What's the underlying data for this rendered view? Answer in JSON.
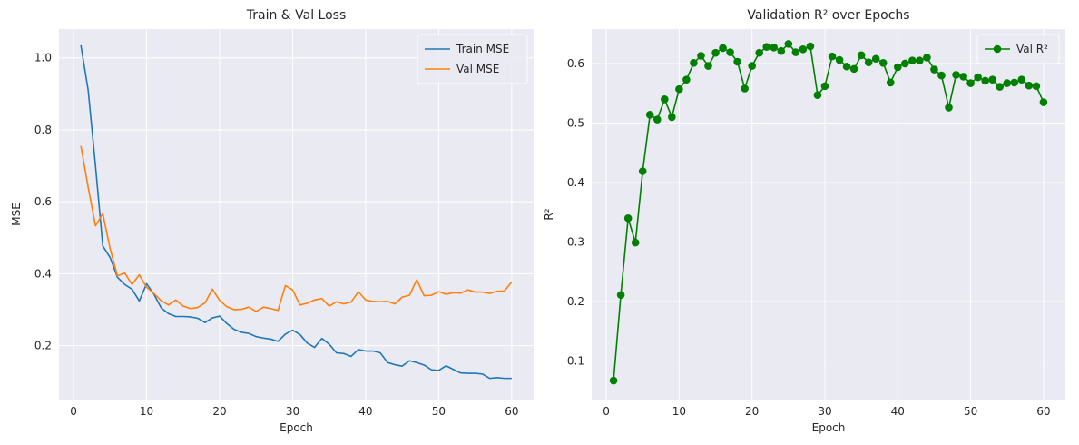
{
  "chart_data": [
    {
      "type": "line",
      "title": "Train & Val Loss",
      "xlabel": "Epoch",
      "ylabel": "MSE",
      "xlim": [
        -2,
        63
      ],
      "ylim": [
        0.05,
        1.08
      ],
      "xticks": [
        0,
        10,
        20,
        30,
        40,
        50,
        60
      ],
      "yticks": [
        0.2,
        0.4,
        0.6,
        0.8,
        1.0
      ],
      "ytick_labels": [
        "0.2",
        "0.4",
        "0.6",
        "0.8",
        "1.0"
      ],
      "grid": true,
      "legend": "top-right",
      "series": [
        {
          "name": "Train MSE",
          "color": "#1f77b4",
          "markers": false,
          "x": [
            1,
            2,
            3,
            4,
            5,
            6,
            7,
            8,
            9,
            10,
            11,
            12,
            13,
            14,
            15,
            16,
            17,
            18,
            19,
            20,
            21,
            22,
            23,
            24,
            25,
            26,
            27,
            28,
            29,
            30,
            31,
            32,
            33,
            34,
            35,
            36,
            37,
            38,
            39,
            40,
            41,
            42,
            43,
            44,
            45,
            46,
            47,
            48,
            49,
            50,
            51,
            52,
            53,
            54,
            55,
            56,
            57,
            58,
            59,
            60
          ],
          "y": [
            1.035,
            0.91,
            0.7,
            0.477,
            0.445,
            0.39,
            0.37,
            0.357,
            0.324,
            0.372,
            0.343,
            0.305,
            0.289,
            0.281,
            0.281,
            0.28,
            0.276,
            0.264,
            0.277,
            0.282,
            0.261,
            0.245,
            0.237,
            0.234,
            0.225,
            0.221,
            0.218,
            0.212,
            0.232,
            0.243,
            0.231,
            0.207,
            0.195,
            0.22,
            0.204,
            0.18,
            0.178,
            0.17,
            0.189,
            0.185,
            0.185,
            0.18,
            0.153,
            0.147,
            0.143,
            0.158,
            0.153,
            0.146,
            0.133,
            0.131,
            0.144,
            0.134,
            0.124,
            0.123,
            0.123,
            0.121,
            0.109,
            0.111,
            0.109,
            0.109
          ]
        },
        {
          "name": "Val MSE",
          "color": "#ff7f0e",
          "markers": false,
          "x": [
            1,
            2,
            3,
            4,
            5,
            6,
            7,
            8,
            9,
            10,
            11,
            12,
            13,
            14,
            15,
            16,
            17,
            18,
            19,
            20,
            21,
            22,
            23,
            24,
            25,
            26,
            27,
            28,
            29,
            30,
            31,
            32,
            33,
            34,
            35,
            36,
            37,
            38,
            39,
            40,
            41,
            42,
            43,
            44,
            45,
            46,
            47,
            48,
            49,
            50,
            51,
            52,
            53,
            54,
            55,
            56,
            57,
            58,
            59,
            60
          ],
          "y": [
            0.755,
            0.64,
            0.533,
            0.567,
            0.47,
            0.394,
            0.402,
            0.37,
            0.397,
            0.362,
            0.345,
            0.325,
            0.313,
            0.327,
            0.31,
            0.303,
            0.306,
            0.319,
            0.357,
            0.326,
            0.308,
            0.3,
            0.301,
            0.307,
            0.295,
            0.307,
            0.303,
            0.298,
            0.367,
            0.355,
            0.313,
            0.318,
            0.327,
            0.331,
            0.31,
            0.322,
            0.316,
            0.321,
            0.35,
            0.327,
            0.323,
            0.322,
            0.323,
            0.316,
            0.335,
            0.34,
            0.383,
            0.339,
            0.34,
            0.35,
            0.343,
            0.347,
            0.346,
            0.355,
            0.349,
            0.349,
            0.345,
            0.351,
            0.352,
            0.377
          ]
        }
      ]
    },
    {
      "type": "line",
      "title": "Validation R² over Epochs",
      "xlabel": "Epoch",
      "ylabel": "R²",
      "xlim": [
        -2,
        63
      ],
      "ylim": [
        0.035,
        0.658
      ],
      "xticks": [
        0,
        10,
        20,
        30,
        40,
        50,
        60
      ],
      "yticks": [
        0.1,
        0.2,
        0.3,
        0.4,
        0.5,
        0.6
      ],
      "ytick_labels": [
        "0.1",
        "0.2",
        "0.3",
        "0.4",
        "0.5",
        "0.6"
      ],
      "grid": true,
      "legend": "top-right",
      "series": [
        {
          "name": "Val R²",
          "color": "#008000",
          "markers": true,
          "x": [
            1,
            2,
            3,
            4,
            5,
            6,
            7,
            8,
            9,
            10,
            11,
            12,
            13,
            14,
            15,
            16,
            17,
            18,
            19,
            20,
            21,
            22,
            23,
            24,
            25,
            26,
            27,
            28,
            29,
            30,
            31,
            32,
            33,
            34,
            35,
            36,
            37,
            38,
            39,
            40,
            41,
            42,
            43,
            44,
            45,
            46,
            47,
            48,
            49,
            50,
            51,
            52,
            53,
            54,
            55,
            56,
            57,
            58,
            59,
            60
          ],
          "y": [
            0.067,
            0.211,
            0.34,
            0.299,
            0.419,
            0.514,
            0.506,
            0.54,
            0.51,
            0.557,
            0.573,
            0.601,
            0.613,
            0.596,
            0.618,
            0.626,
            0.619,
            0.603,
            0.558,
            0.596,
            0.618,
            0.628,
            0.627,
            0.621,
            0.633,
            0.619,
            0.624,
            0.629,
            0.547,
            0.562,
            0.612,
            0.606,
            0.595,
            0.591,
            0.614,
            0.602,
            0.608,
            0.601,
            0.568,
            0.594,
            0.6,
            0.605,
            0.605,
            0.61,
            0.59,
            0.58,
            0.526,
            0.581,
            0.578,
            0.567,
            0.577,
            0.571,
            0.573,
            0.561,
            0.567,
            0.568,
            0.573,
            0.563,
            0.562,
            0.535
          ]
        }
      ]
    }
  ]
}
